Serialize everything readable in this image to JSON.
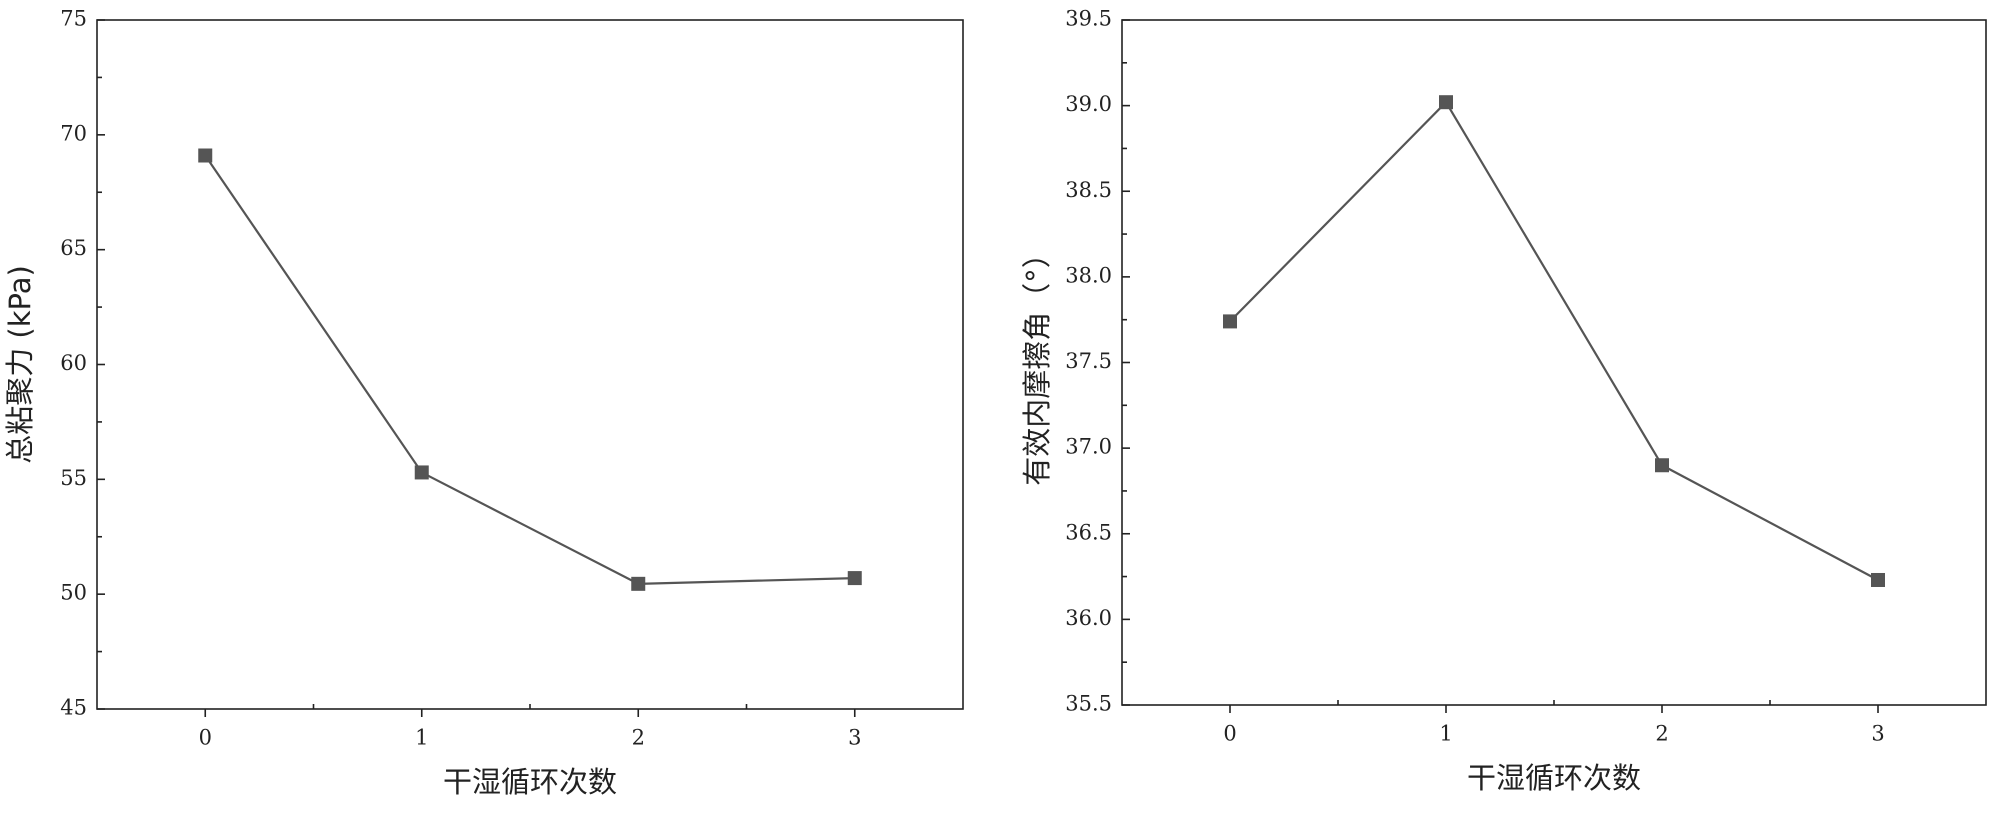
{
  "chart_data": [
    {
      "type": "line",
      "xlabel": "干湿循环次数",
      "ylabel": "总粘聚力 (kPa)",
      "x": [
        0,
        1,
        2,
        3
      ],
      "values": [
        69.1,
        55.3,
        50.45,
        50.7
      ],
      "color": "#555555",
      "xlim": [
        -0.5,
        3.5
      ],
      "xticks": [
        0,
        1,
        2,
        3
      ],
      "ylim": [
        45,
        75
      ],
      "yticks": [
        45,
        50,
        55,
        60,
        65,
        70,
        75
      ]
    },
    {
      "type": "line",
      "xlabel": "干湿循环次数",
      "ylabel": "有效内摩擦角（°）",
      "x": [
        0,
        1,
        2,
        3
      ],
      "values": [
        37.74,
        39.02,
        36.9,
        36.23
      ],
      "color": "#555555",
      "xlim": [
        -0.5,
        3.5
      ],
      "xticks": [
        0,
        1,
        2,
        3
      ],
      "ylim": [
        35.5,
        39.5
      ],
      "yticks": [
        {
          "value": 35.5,
          "label": "35.5"
        },
        {
          "value": 36,
          "label": "36.0"
        },
        {
          "value": 36.5,
          "label": "36.5"
        },
        {
          "value": 37,
          "label": "37.0"
        },
        {
          "value": 37.5,
          "label": "37.5"
        },
        {
          "value": 38,
          "label": "38.0"
        },
        {
          "value": 38.5,
          "label": "38.5"
        },
        {
          "value": 39,
          "label": "39.0"
        },
        {
          "value": 39.5,
          "label": "39.5"
        }
      ]
    }
  ]
}
